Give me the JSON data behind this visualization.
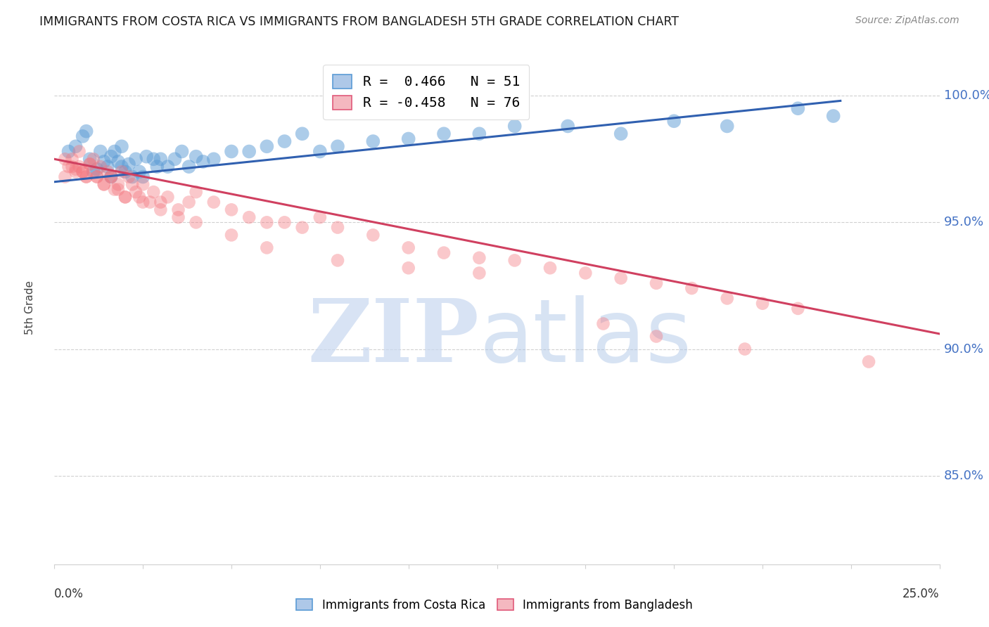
{
  "title": "IMMIGRANTS FROM COSTA RICA VS IMMIGRANTS FROM BANGLADESH 5TH GRADE CORRELATION CHART",
  "source": "Source: ZipAtlas.com",
  "ylabel": "5th Grade",
  "yaxis_values": [
    0.85,
    0.9,
    0.95,
    1.0
  ],
  "yaxis_labels": [
    "85.0%",
    "90.0%",
    "95.0%",
    "100.0%"
  ],
  "xmin": 0.0,
  "xmax": 0.25,
  "ymin": 0.815,
  "ymax": 1.018,
  "legend1_label": "R =  0.466   N = 51",
  "legend2_label": "R = -0.458   N = 76",
  "legend1_color": "#5b9bd5",
  "legend2_color": "#f4777f",
  "costa_rica_x": [
    0.004,
    0.006,
    0.008,
    0.009,
    0.01,
    0.011,
    0.012,
    0.013,
    0.014,
    0.015,
    0.016,
    0.016,
    0.017,
    0.018,
    0.019,
    0.019,
    0.02,
    0.021,
    0.022,
    0.023,
    0.024,
    0.025,
    0.026,
    0.028,
    0.029,
    0.03,
    0.032,
    0.034,
    0.036,
    0.038,
    0.04,
    0.042,
    0.045,
    0.05,
    0.055,
    0.06,
    0.065,
    0.07,
    0.075,
    0.08,
    0.09,
    0.1,
    0.11,
    0.12,
    0.13,
    0.145,
    0.16,
    0.175,
    0.19,
    0.21,
    0.22
  ],
  "costa_rica_y": [
    0.978,
    0.98,
    0.984,
    0.986,
    0.975,
    0.97,
    0.971,
    0.978,
    0.974,
    0.972,
    0.968,
    0.976,
    0.978,
    0.974,
    0.972,
    0.98,
    0.97,
    0.973,
    0.968,
    0.975,
    0.97,
    0.968,
    0.976,
    0.975,
    0.972,
    0.975,
    0.972,
    0.975,
    0.978,
    0.972,
    0.976,
    0.974,
    0.975,
    0.978,
    0.978,
    0.98,
    0.982,
    0.985,
    0.978,
    0.98,
    0.982,
    0.983,
    0.985,
    0.985,
    0.988,
    0.988,
    0.985,
    0.99,
    0.988,
    0.995,
    0.992
  ],
  "bangladesh_x": [
    0.003,
    0.005,
    0.006,
    0.007,
    0.008,
    0.009,
    0.01,
    0.011,
    0.012,
    0.013,
    0.014,
    0.015,
    0.016,
    0.017,
    0.018,
    0.019,
    0.02,
    0.021,
    0.022,
    0.023,
    0.024,
    0.025,
    0.027,
    0.028,
    0.03,
    0.032,
    0.035,
    0.038,
    0.04,
    0.045,
    0.05,
    0.055,
    0.06,
    0.065,
    0.07,
    0.075,
    0.08,
    0.09,
    0.1,
    0.11,
    0.12,
    0.13,
    0.14,
    0.15,
    0.16,
    0.17,
    0.18,
    0.19,
    0.2,
    0.21,
    0.003,
    0.004,
    0.005,
    0.006,
    0.007,
    0.008,
    0.009,
    0.01,
    0.012,
    0.014,
    0.016,
    0.018,
    0.02,
    0.025,
    0.03,
    0.035,
    0.04,
    0.05,
    0.06,
    0.08,
    0.1,
    0.12,
    0.155,
    0.17,
    0.195,
    0.23
  ],
  "bangladesh_y": [
    0.975,
    0.972,
    0.971,
    0.978,
    0.97,
    0.968,
    0.973,
    0.975,
    0.968,
    0.972,
    0.965,
    0.97,
    0.968,
    0.963,
    0.965,
    0.97,
    0.96,
    0.968,
    0.965,
    0.962,
    0.96,
    0.965,
    0.958,
    0.962,
    0.958,
    0.96,
    0.955,
    0.958,
    0.962,
    0.958,
    0.955,
    0.952,
    0.95,
    0.95,
    0.948,
    0.952,
    0.948,
    0.945,
    0.94,
    0.938,
    0.936,
    0.935,
    0.932,
    0.93,
    0.928,
    0.926,
    0.924,
    0.92,
    0.918,
    0.916,
    0.968,
    0.972,
    0.975,
    0.97,
    0.972,
    0.97,
    0.968,
    0.973,
    0.968,
    0.965,
    0.968,
    0.963,
    0.96,
    0.958,
    0.955,
    0.952,
    0.95,
    0.945,
    0.94,
    0.935,
    0.932,
    0.93,
    0.91,
    0.905,
    0.9,
    0.895
  ],
  "blue_line_x": [
    0.0,
    0.222
  ],
  "blue_line_y": [
    0.966,
    0.998
  ],
  "pink_line_x": [
    0.0,
    0.25
  ],
  "pink_line_y": [
    0.975,
    0.906
  ],
  "watermark_zip_color": "#c8d8f0",
  "watermark_atlas_color": "#b0c8e8",
  "bg_color": "#ffffff",
  "grid_color": "#d0d0d0",
  "spine_color": "#d0d0d0",
  "right_label_color": "#4472c4",
  "title_color": "#1a1a1a",
  "source_color": "#888888",
  "ylabel_color": "#444444"
}
